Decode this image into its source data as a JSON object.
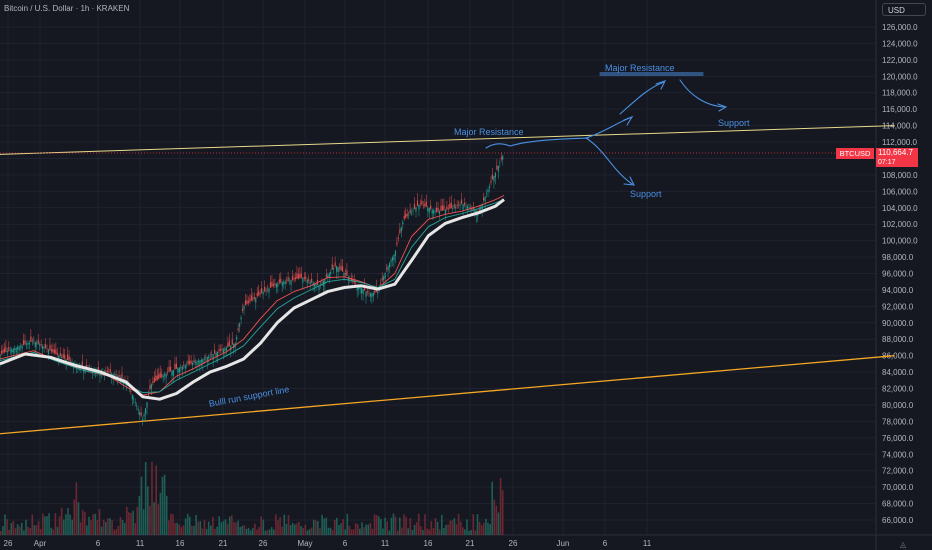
{
  "header": {
    "title": "Bitcoin / U.S. Dollar · 1h · KRAKEN",
    "currency_button": "USD"
  },
  "price_badge": {
    "symbol": "BTCUSD",
    "price": "110,664.7",
    "timer": "07:17"
  },
  "annotations": {
    "major_resistance_1": "Major Resistance",
    "major_resistance_2": "Major Resistance",
    "support_1": "Support",
    "support_2": "Support",
    "bull_line": "Bulll run support line"
  },
  "colors": {
    "background": "#151821",
    "trendline_yellow": "#e8d98a",
    "trendline_orange": "#f5a623",
    "annotation_blue": "#4a90e2",
    "badge_red": "#f23645"
  },
  "chart_data": {
    "type": "line",
    "title": "Bitcoin / U.S. Dollar · 1h · KRAKEN",
    "xlabel": "",
    "ylabel": "",
    "x_ticks": [
      "26",
      "Apr",
      "6",
      "11",
      "16",
      "21",
      "26",
      "May",
      "6",
      "11",
      "16",
      "21",
      "26",
      "Jun",
      "6",
      "11"
    ],
    "y_ticks": [
      66000,
      68000,
      70000,
      72000,
      74000,
      76000,
      78000,
      80000,
      82000,
      84000,
      86000,
      88000,
      90000,
      92000,
      94000,
      96000,
      98000,
      100000,
      102000,
      104000,
      106000,
      108000,
      110000,
      112000,
      114000,
      116000,
      118000,
      120000,
      122000,
      124000,
      126000
    ],
    "y_tick_labels": [
      "66,000.0",
      "68,000.0",
      "70,000.0",
      "72,000.0",
      "74,000.0",
      "76,000.0",
      "78,000.0",
      "80,000.0",
      "82,000.0",
      "84,000.0",
      "86,000.0",
      "88,000.0",
      "90,000.0",
      "92,000.0",
      "94,000.0",
      "96,000.0",
      "98,000.0",
      "100,000.0",
      "102,000.0",
      "104,000.0",
      "106,000.0",
      "108,000.0",
      "110,000.0",
      "112,000.0",
      "114,000.0",
      "116,000.0",
      "118,000.0",
      "120,000.0",
      "122,000.0",
      "124,000.0",
      "126,000.0"
    ],
    "ylim": [
      64800,
      127500
    ],
    "grid": true,
    "series": [
      {
        "x": [
          0,
          8,
          14,
          20,
          26,
          30,
          34,
          36,
          40,
          44,
          48,
          52,
          56,
          58,
          62,
          66,
          72,
          76,
          80,
          84,
          88,
          90,
          92,
          94,
          96,
          98,
          100,
          104,
          108,
          110,
          114,
          116,
          120
        ],
        "values": [
          86200,
          87800,
          86000,
          84500,
          84000,
          83000,
          78200,
          82500,
          84000,
          84800,
          85500,
          86500,
          87500,
          92000,
          93500,
          94800,
          95500,
          94500,
          97000,
          95000,
          93500,
          93800,
          96500,
          98500,
          102500,
          103500,
          104500,
          103500,
          104000,
          104500,
          103500,
          106000,
          110664.7
        ]
      },
      {
        "x": [
          0,
          8,
          14,
          20,
          26,
          30,
          34,
          38,
          42,
          46,
          50,
          54,
          58,
          62,
          66,
          70,
          74,
          78,
          82,
          86,
          90,
          94,
          98,
          102,
          106,
          110,
          114,
          118,
          120
        ],
        "values": [
          85600,
          86600,
          85300,
          84200,
          83500,
          82200,
          81200,
          81600,
          83500,
          84400,
          85500,
          86500,
          88000,
          90500,
          92700,
          93800,
          94500,
          95500,
          95600,
          95000,
          94200,
          96000,
          100500,
          102600,
          103200,
          103600,
          104200,
          105000,
          105500
        ]
      },
      {
        "x": [
          0,
          8,
          14,
          20,
          26,
          30,
          34,
          38,
          42,
          46,
          50,
          54,
          58,
          62,
          66,
          70,
          74,
          78,
          82,
          86,
          90,
          94,
          98,
          102,
          106,
          110,
          114,
          118,
          120
        ],
        "values": [
          85400,
          86400,
          85200,
          84200,
          83600,
          82500,
          81500,
          81600,
          83000,
          84000,
          85000,
          86000,
          87200,
          89500,
          91700,
          93000,
          94000,
          95000,
          95300,
          94900,
          94300,
          95300,
          99200,
          101700,
          102800,
          103300,
          103900,
          104600,
          105000
        ]
      },
      {
        "x": [
          0,
          6,
          12,
          18,
          24,
          30,
          34,
          38,
          42,
          46,
          50,
          54,
          58,
          62,
          66,
          70,
          74,
          78,
          82,
          86,
          90,
          94,
          98,
          102,
          106,
          110,
          114,
          118,
          120
        ],
        "values": [
          85000,
          86200,
          85800,
          84800,
          84000,
          82800,
          81000,
          80700,
          81400,
          82800,
          84000,
          84700,
          85600,
          87500,
          90000,
          91800,
          92800,
          93800,
          94300,
          94500,
          94100,
          94700,
          97600,
          100600,
          102100,
          102800,
          103400,
          104200,
          105000
        ]
      }
    ],
    "lines": [
      {
        "label": "Major Resistance",
        "points": [
          [
            0,
            110500
          ],
          [
            213,
            114000
          ]
        ]
      },
      {
        "label": "Bulll run support line",
        "points": [
          [
            0,
            76500
          ],
          [
            213,
            86000
          ]
        ]
      }
    ],
    "last_price": 110664.7,
    "current_symbol": "BTCUSD"
  }
}
